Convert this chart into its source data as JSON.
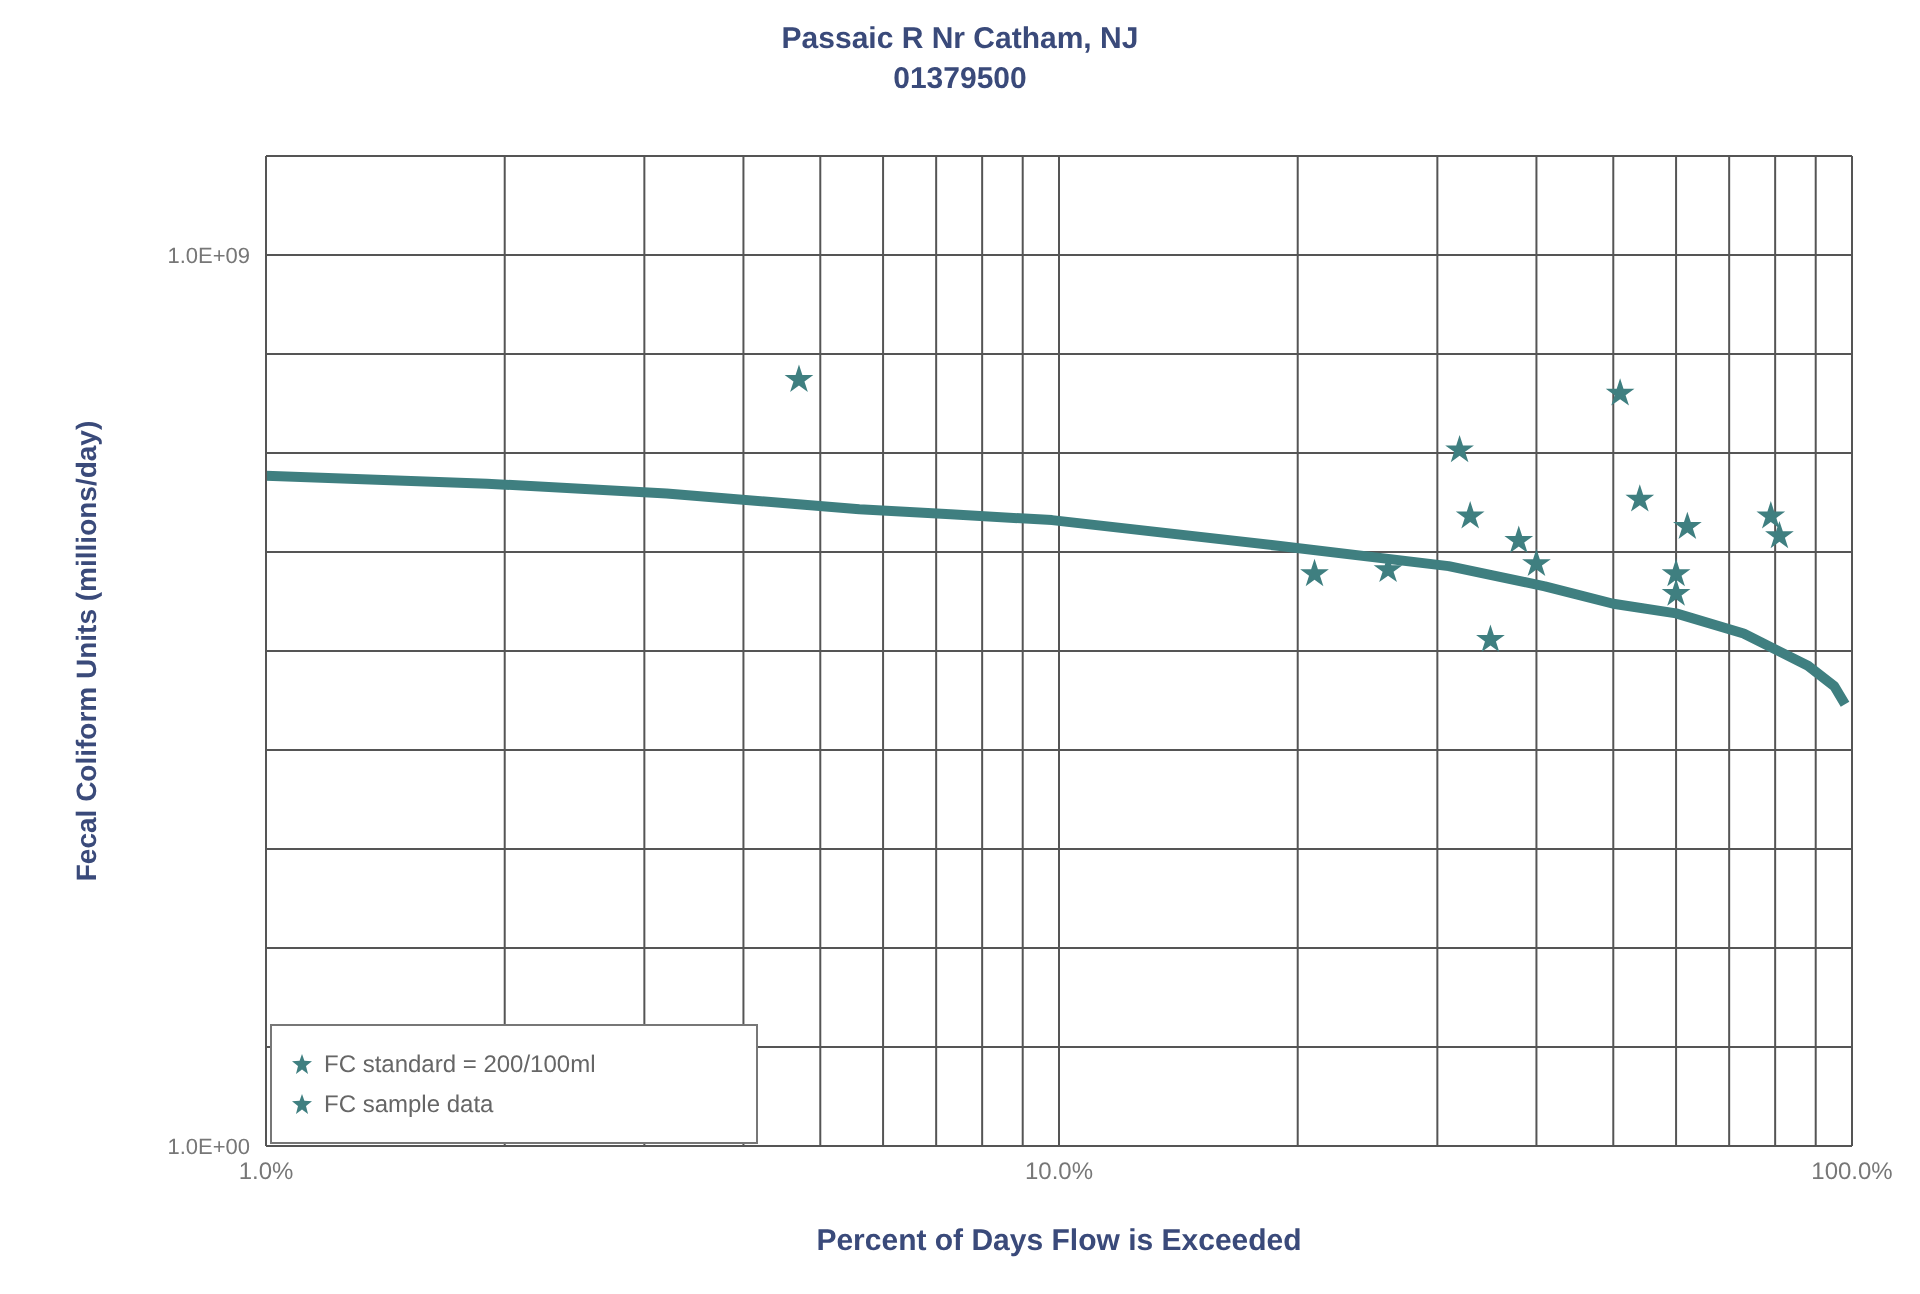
{
  "chart_data": {
    "type": "line",
    "title": "Passaic R Nr Catham, NJ",
    "subtitle": "01379500",
    "xlabel": "Percent of Days Flow is Exceeded",
    "ylabel": "Fecal Coliform Units (millions/day)",
    "log": "xy",
    "grid": true,
    "legend": "bottom left",
    "xlim": [
      1,
      100
    ],
    "xticks": [
      {
        "value": 1,
        "label": "1.0%"
      },
      {
        "value": 2,
        "label": null
      },
      {
        "value": 3,
        "label": null
      },
      {
        "value": 4,
        "label": null
      },
      {
        "value": 5,
        "label": null
      },
      {
        "value": 6,
        "label": null
      },
      {
        "value": 7,
        "label": null
      },
      {
        "value": 8,
        "label": null
      },
      {
        "value": 9,
        "label": null
      },
      {
        "value": 10,
        "label": "10.0%"
      },
      {
        "value": 20,
        "label": null
      },
      {
        "value": 30,
        "label": null
      },
      {
        "value": 40,
        "label": null
      },
      {
        "value": 50,
        "label": null
      },
      {
        "value": 60,
        "label": null
      },
      {
        "value": 70,
        "label": null
      },
      {
        "value": 80,
        "label": null
      },
      {
        "value": 90,
        "label": null
      },
      {
        "value": 100,
        "label": "100.0%"
      }
    ],
    "ylim": [
      1,
      10000000000
    ],
    "yticks": [
      {
        "value": 1,
        "label": "1.0E+00"
      },
      {
        "value": 10,
        "label": null
      },
      {
        "value": 100,
        "label": null
      },
      {
        "value": 1000,
        "label": null
      },
      {
        "value": 10000,
        "label": null
      },
      {
        "value": 100000,
        "label": null
      },
      {
        "value": 1000000,
        "label": null
      },
      {
        "value": 10000000,
        "label": null
      },
      {
        "value": 100000000,
        "label": null
      },
      {
        "value": 1000000000,
        "label": "1.0E+09"
      },
      {
        "value": 10000000000,
        "label": null
      }
    ],
    "series": [
      {
        "name": "FC standard = 200/100ml",
        "color": "#3f7f80",
        "marker": "none",
        "x": [
          1,
          1.9,
          3.2,
          5.6,
          7.3,
          9.8,
          19,
          31,
          41,
          50,
          60,
          73,
          88,
          95,
          98
        ],
        "values": [
          5900000,
          4900000,
          3900000,
          2700000,
          2400000,
          2100000,
          1150000,
          720000,
          450000,
          300000,
          240000,
          150000,
          71000,
          44000,
          29000
        ]
      },
      {
        "name": "FC sample data",
        "type": "scatter",
        "color": "#3f7f80",
        "marker": "star",
        "x": [
          4.7,
          21,
          26,
          32,
          33,
          35,
          38,
          40,
          51,
          54,
          60,
          60,
          62,
          79,
          81
        ],
        "values": [
          55000000,
          600000,
          660000,
          10700000,
          2300000,
          130000,
          1300000,
          760000,
          40000000,
          3400000,
          600000,
          380000,
          1800000,
          2300000,
          1450000
        ]
      }
    ]
  }
}
